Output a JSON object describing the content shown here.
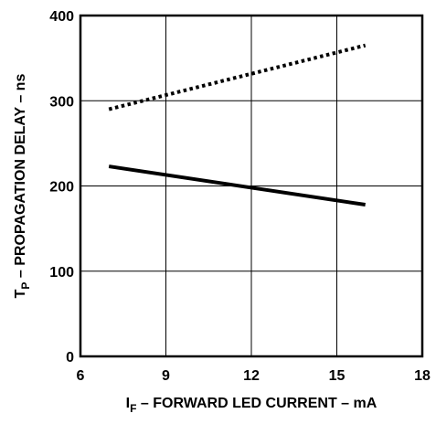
{
  "chart_data": {
    "type": "line",
    "xlabel": {
      "main": "I",
      "sub": "F",
      "rest": " – FORWARD LED CURRENT – mA"
    },
    "ylabel": {
      "main": "T",
      "sub": "P",
      "rest": " – PROPAGATION DELAY – ns"
    },
    "xlim": [
      6,
      18
    ],
    "ylim": [
      0,
      400
    ],
    "xticks": [
      6,
      9,
      12,
      15,
      18
    ],
    "yticks": [
      0,
      100,
      200,
      300,
      400
    ],
    "grid": true,
    "legend": "none",
    "series": [
      {
        "style": "dotted",
        "color": "#000000",
        "x": [
          7,
          16
        ],
        "y": [
          290,
          365
        ]
      },
      {
        "style": "solid",
        "color": "#000000",
        "x": [
          7,
          16
        ],
        "y": [
          223,
          178
        ]
      }
    ]
  }
}
